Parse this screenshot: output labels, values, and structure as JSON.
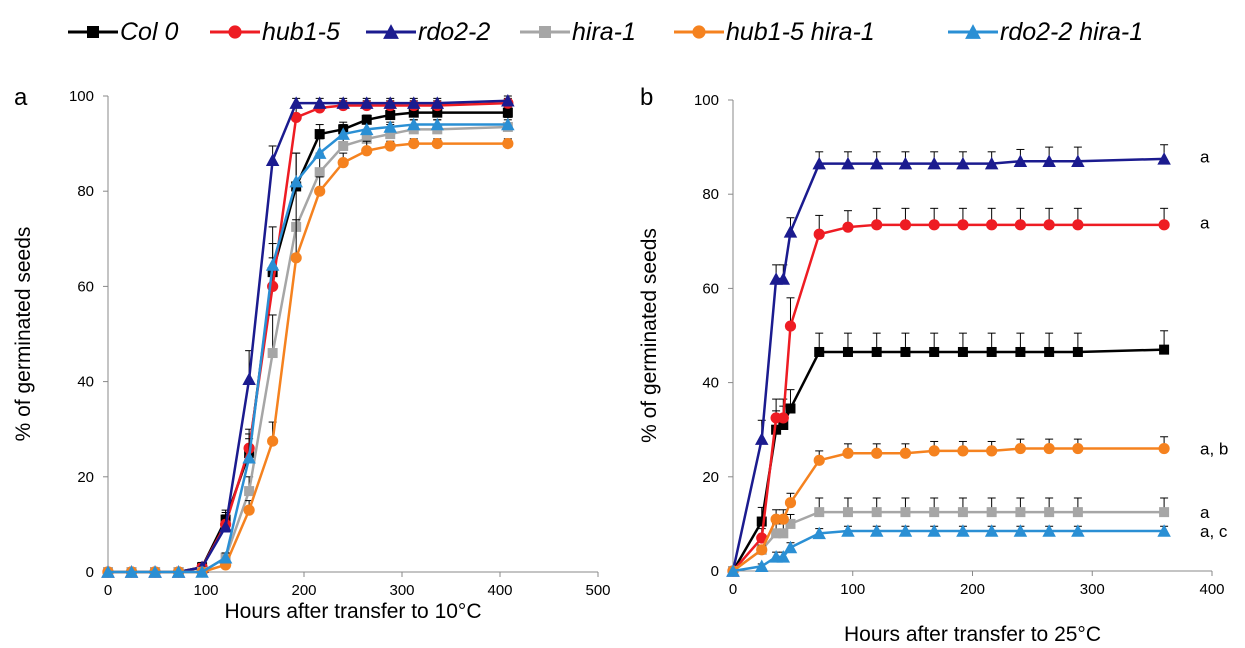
{
  "legend": [
    {
      "name": "Col 0",
      "color": "#000000",
      "marker": "square",
      "left": 0
    },
    {
      "name": "hub1-5",
      "color": "#ee1c23",
      "marker": "circle",
      "left": 142
    },
    {
      "name": "rdo2-2",
      "color": "#1b1b8f",
      "marker": "triangle",
      "left": 298
    },
    {
      "name": "hira-1",
      "color": "#a6a6a6",
      "marker": "square",
      "left": 452
    },
    {
      "name": "hub1-5 hira-1",
      "color": "#f5821f",
      "marker": "circle",
      "left": 606
    },
    {
      "name": "rdo2-2 hira-1",
      "color": "#2a8fd4",
      "marker": "triangle",
      "left": 880
    }
  ],
  "chart_data": [
    {
      "type": "line",
      "panel_label": "a",
      "xlabel": "Hours after transfer to 10°C",
      "ylabel": "% of germinated seeds",
      "xlim": [
        0,
        500
      ],
      "ylim": [
        0,
        100
      ],
      "xticks": [
        0,
        100,
        200,
        300,
        400,
        500
      ],
      "yticks": [
        0,
        20,
        40,
        60,
        80,
        100
      ],
      "x": [
        0,
        24,
        48,
        72,
        96,
        120,
        144,
        168,
        192,
        216,
        240,
        264,
        288,
        312,
        336,
        408
      ],
      "series": [
        {
          "name": "Col 0",
          "values": [
            0,
            0,
            0,
            0,
            1,
            11,
            25,
            63,
            81,
            92,
            93,
            95,
            96,
            96.5,
            96.5,
            96.5
          ],
          "err": [
            0,
            0,
            0,
            0,
            1,
            2,
            4,
            6,
            7,
            2,
            1.5,
            1,
            1,
            1,
            1,
            1
          ]
        },
        {
          "name": "hub1-5",
          "values": [
            0,
            0,
            0,
            0,
            1,
            10,
            26,
            60,
            95.5,
            97.5,
            98,
            98,
            98,
            98,
            98,
            98.5
          ],
          "err": [
            0,
            0,
            0,
            0,
            1,
            2,
            4,
            6,
            2,
            1,
            1,
            1,
            1,
            1,
            1,
            1
          ]
        },
        {
          "name": "rdo2-2",
          "values": [
            0,
            0,
            0,
            0,
            1,
            9.5,
            40.5,
            86.5,
            98.5,
            98.5,
            98.5,
            98.5,
            98.5,
            98.5,
            98.5,
            99
          ],
          "err": [
            0,
            0,
            0,
            0,
            1,
            3,
            6,
            3,
            1,
            1,
            1,
            1,
            1,
            1,
            1,
            1
          ]
        },
        {
          "name": "hira-1",
          "values": [
            0,
            0,
            0,
            0,
            0,
            3,
            17,
            46,
            72.5,
            84,
            89.5,
            91,
            92,
            93,
            93,
            93.5
          ],
          "err": [
            0,
            0,
            0,
            0,
            0,
            1,
            3,
            8,
            8,
            4,
            3,
            2,
            2,
            2,
            2,
            2
          ]
        },
        {
          "name": "hub1-5 hira-1",
          "values": [
            0,
            0,
            0,
            0,
            0,
            1.5,
            13,
            27.5,
            66,
            80,
            86,
            88.5,
            89.5,
            90,
            90,
            90
          ],
          "err": [
            0,
            0,
            0,
            0,
            0,
            1,
            2,
            4,
            8,
            3,
            2,
            2,
            1,
            1,
            1,
            1
          ]
        },
        {
          "name": "rdo2-2 hira-1",
          "values": [
            0,
            0,
            0,
            0,
            0,
            3,
            24,
            64.5,
            82,
            88,
            92,
            93,
            93.5,
            94,
            94,
            94
          ],
          "err": [
            0,
            0,
            0,
            0,
            0,
            1,
            4,
            8,
            6,
            3,
            2,
            2,
            1,
            1,
            1,
            1
          ]
        }
      ]
    },
    {
      "type": "line",
      "panel_label": "b",
      "xlabel": "Hours after transfer to 25°C",
      "ylabel": "% of germinated seeds",
      "xlim": [
        0,
        400
      ],
      "ylim": [
        0,
        100
      ],
      "xticks": [
        0,
        100,
        200,
        300,
        400
      ],
      "yticks": [
        0,
        20,
        40,
        60,
        80,
        100
      ],
      "x": [
        0,
        24,
        36,
        42,
        48,
        72,
        96,
        120,
        144,
        168,
        192,
        216,
        240,
        264,
        288,
        360
      ],
      "series": [
        {
          "name": "Col 0",
          "values": [
            0,
            10.5,
            30,
            31,
            34.5,
            46.5,
            46.5,
            46.5,
            46.5,
            46.5,
            46.5,
            46.5,
            46.5,
            46.5,
            46.5,
            47
          ],
          "err": [
            0,
            3,
            4,
            4,
            4,
            4,
            4,
            4,
            4,
            4,
            4,
            4,
            4,
            4,
            4,
            4
          ]
        },
        {
          "name": "hub1-5",
          "values": [
            0,
            7,
            32.5,
            32.5,
            52,
            71.5,
            73,
            73.5,
            73.5,
            73.5,
            73.5,
            73.5,
            73.5,
            73.5,
            73.5,
            73.5
          ],
          "err": [
            0,
            2,
            4,
            4,
            6,
            4,
            3.5,
            3.5,
            3.5,
            3.5,
            3.5,
            3.5,
            3.5,
            3.5,
            3.5,
            3.5
          ]
        },
        {
          "name": "rdo2-2",
          "values": [
            0,
            28,
            62,
            62,
            72,
            86.5,
            86.5,
            86.5,
            86.5,
            86.5,
            86.5,
            86.5,
            87,
            87,
            87,
            87.5
          ],
          "err": [
            0,
            4,
            3,
            3,
            3,
            2.5,
            2.5,
            2.5,
            2.5,
            2.5,
            2.5,
            2.5,
            2.5,
            3,
            3,
            3
          ]
        },
        {
          "name": "hira-1",
          "values": [
            0,
            4.5,
            8,
            8,
            10,
            12.5,
            12.5,
            12.5,
            12.5,
            12.5,
            12.5,
            12.5,
            12.5,
            12.5,
            12.5,
            12.5
          ],
          "err": [
            0,
            1,
            2,
            2,
            2,
            3,
            3,
            3,
            3,
            3,
            3,
            3,
            3,
            3,
            3,
            3
          ]
        },
        {
          "name": "hub1-5 hira-1",
          "values": [
            0,
            4.5,
            11,
            11,
            14.5,
            23.5,
            25,
            25,
            25,
            25.5,
            25.5,
            25.5,
            26,
            26,
            26,
            26
          ],
          "err": [
            0,
            1,
            2,
            2,
            2,
            2,
            2,
            2,
            2,
            2,
            2,
            2,
            2,
            2,
            2,
            2.5
          ]
        },
        {
          "name": "rdo2-2 hira-1",
          "values": [
            0,
            1,
            3,
            3,
            5,
            8,
            8.5,
            8.5,
            8.5,
            8.5,
            8.5,
            8.5,
            8.5,
            8.5,
            8.5,
            8.5
          ],
          "err": [
            0,
            0.5,
            1,
            1,
            1,
            1,
            1,
            1,
            1,
            1,
            1,
            1,
            1,
            1,
            1,
            1
          ]
        }
      ],
      "annotations": [
        {
          "text": "a",
          "value": 88
        },
        {
          "text": "a",
          "value": 74
        },
        {
          "text": "a, b",
          "value": 26
        },
        {
          "text": "a",
          "value": 12.5
        },
        {
          "text": "a, c",
          "value": 8.5
        }
      ]
    }
  ]
}
